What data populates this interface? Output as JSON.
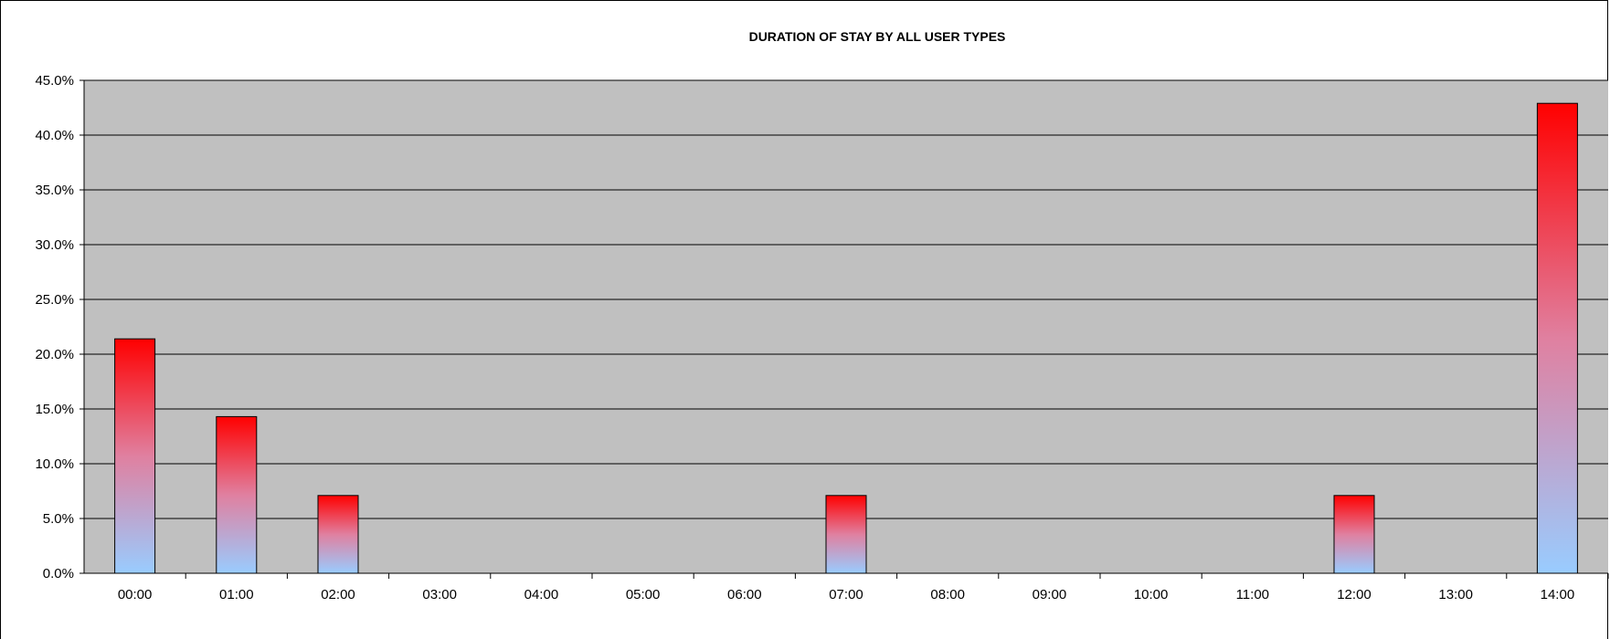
{
  "chart_data": {
    "type": "bar",
    "title": "DURATION OF STAY BY ALL USER TYPES",
    "xlabel": "",
    "ylabel": "",
    "categories": [
      "00:00",
      "01:00",
      "02:00",
      "03:00",
      "04:00",
      "05:00",
      "06:00",
      "07:00",
      "08:00",
      "09:00",
      "10:00",
      "11:00",
      "12:00",
      "13:00",
      "14:00"
    ],
    "values": [
      21.4,
      14.3,
      7.1,
      0,
      0,
      0,
      0,
      7.1,
      0,
      0,
      0,
      0,
      7.1,
      0,
      42.9
    ],
    "ylim": [
      0,
      45
    ],
    "yticks": [
      "0.0%",
      "5.0%",
      "10.0%",
      "15.0%",
      "20.0%",
      "25.0%",
      "30.0%",
      "35.0%",
      "40.0%",
      "45.0%"
    ],
    "grid": true,
    "legend": "none",
    "colors": {
      "plot_bg": "#c0c0c0",
      "bar_top": "#ff0000",
      "bar_mid": "#e080a0",
      "bar_bottom": "#99ccff",
      "grid": "#000000"
    }
  }
}
